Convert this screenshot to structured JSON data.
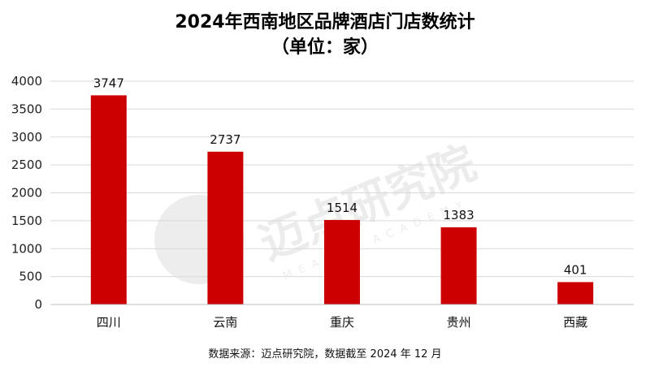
{
  "chart_data": {
    "type": "bar",
    "title": "2024年西南地区品牌酒店门店数统计",
    "subtitle": "（单位：家）",
    "categories": [
      "四川",
      "云南",
      "重庆",
      "贵州",
      "西藏"
    ],
    "values": [
      3747,
      2737,
      1514,
      1383,
      401
    ],
    "ylim": [
      0,
      4000
    ],
    "yticks": [
      0,
      500,
      1000,
      1500,
      2000,
      2500,
      3000,
      3500,
      4000
    ],
    "grid": true,
    "legend": "none",
    "bar_color": "#cc0000",
    "source": "数据来源：迈点研究院，数据截至 2024 年 12 月"
  },
  "watermark": {
    "text": "迈点研究院",
    "subtext": "MEADIN ACADEMY"
  }
}
